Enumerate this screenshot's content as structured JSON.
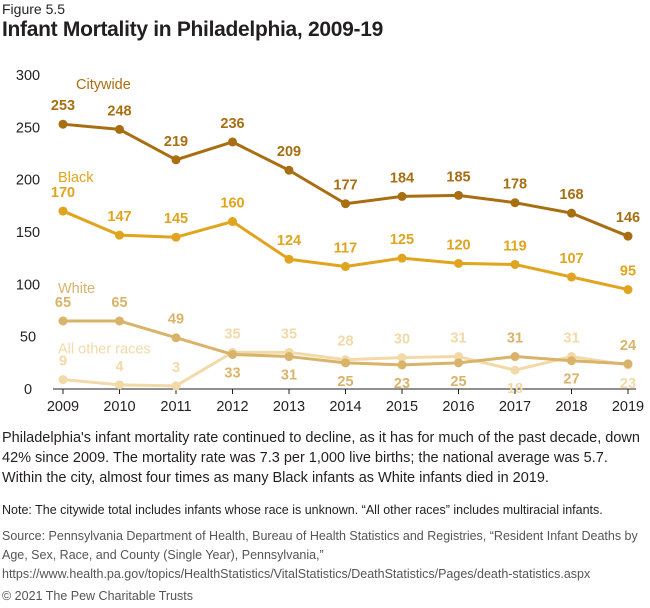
{
  "figure_label": "Figure 5.5",
  "title": "Infant Mortality in Philadelphia, 2009-19",
  "description": "Philadelphia's infant mortality rate continued to decline, as it has for much of the past decade, down 42% since 2009. The mortality rate was 7.3 per 1,000 live births; the national average was 5.7. Within the city, almost four times as many Black infants as White infants died in 2019.",
  "note": "Note: The citywide total includes infants whose race is unknown. “All other races” includes multiracial infants.",
  "source": "Source: Pennsylvania Department of Health, Bureau of Health Statistics and Registries, “Resident Infant Deaths by Age, Sex, Race, and County (Single Year), Pennsylvania,” https://www.health.pa.gov/topics/HealthStatistics/VitalStatistics/DeathStatistics/Pages/death-statistics.aspx",
  "copyright": "© 2021 The Pew Charitable Trusts",
  "chart_data": {
    "type": "line",
    "x": [
      2009,
      2010,
      2011,
      2012,
      2013,
      2014,
      2015,
      2016,
      2017,
      2018,
      2019
    ],
    "ylim": [
      0,
      300
    ],
    "yticks": [
      0,
      50,
      100,
      150,
      200,
      250,
      300
    ],
    "grid": false,
    "series": [
      {
        "name": "Citywide",
        "color": "#a86e12",
        "values": [
          253,
          248,
          219,
          236,
          209,
          177,
          184,
          185,
          178,
          168,
          146
        ]
      },
      {
        "name": "Black",
        "color": "#e0a41e",
        "values": [
          170,
          147,
          145,
          160,
          124,
          117,
          125,
          120,
          119,
          107,
          95
        ]
      },
      {
        "name": "White",
        "color": "#d9b36a",
        "values": [
          65,
          65,
          49,
          33,
          31,
          25,
          23,
          25,
          31,
          27,
          24
        ]
      },
      {
        "name": "All other races",
        "color": "#f2d9a8",
        "values": [
          9,
          4,
          3,
          35,
          35,
          28,
          30,
          31,
          18,
          31,
          23
        ]
      }
    ]
  }
}
